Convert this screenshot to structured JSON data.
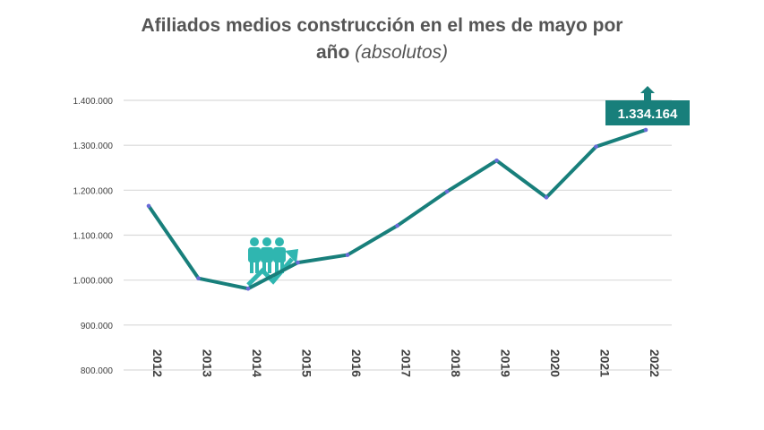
{
  "chart_data": {
    "type": "line",
    "title_line1": "Afiliados medios construcción en el mes de mayo por",
    "title_line2": "año",
    "subtitle": "(absolutos)",
    "xlabel": "",
    "ylabel": "",
    "x": [
      "2012",
      "2013",
      "2014",
      "2015",
      "2016",
      "2017",
      "2018",
      "2019",
      "2020",
      "2021",
      "2022"
    ],
    "values": [
      1165000,
      1004000,
      981000,
      1039000,
      1056000,
      1121000,
      1197000,
      1266000,
      1184000,
      1297000,
      1334164
    ],
    "ylim": [
      800000,
      1400000
    ],
    "yticks": [
      800000,
      900000,
      1000000,
      1100000,
      1200000,
      1300000,
      1400000
    ],
    "ytick_labels": [
      "800.000",
      "900.000",
      "1.000.000",
      "1.100.000",
      "1.200.000",
      "1.300.000",
      "1.400.000"
    ],
    "grid": true,
    "highlight_label": "1.334.164",
    "colors": {
      "line": "#187f7b",
      "marker": "#6a6ad8",
      "callout": "#187f7b",
      "icon": "#2fb6b0",
      "grid": "#d9d9d9"
    },
    "icons": [
      "people-group-icon",
      "up-arrow-icon"
    ]
  }
}
